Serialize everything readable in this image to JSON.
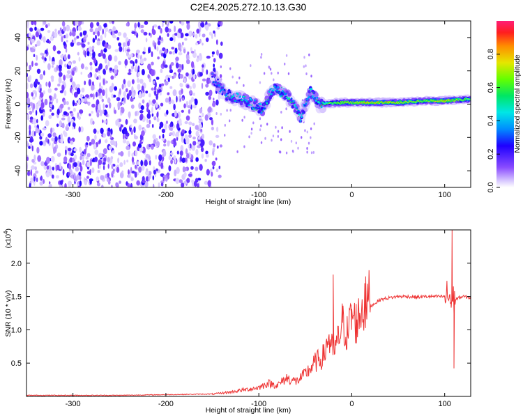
{
  "title": "C2E4.2025.272.10.13.G30",
  "colors": {
    "snr_line": "#ee3333",
    "spectrogram_dark": "#5a10e0",
    "spectrogram_light": "#d8c8ff",
    "band_core": "#ff2222"
  },
  "chart_data": [
    {
      "type": "heatmap",
      "title": "C2E4.2025.272.10.13.G30",
      "xlabel": "Height of straight line (km)",
      "ylabel": "Frequency (Hz)",
      "xlim": [
        -350,
        128
      ],
      "ylim": [
        -50,
        50
      ],
      "xticks": [
        "-300",
        "-200",
        "-100",
        "0",
        "100"
      ],
      "yticks": [
        "-40",
        "-20",
        "0",
        "20",
        "40"
      ],
      "colorbar": {
        "label": "Normalized spectral amplitude",
        "range": [
          0,
          1
        ],
        "ticks": [
          "0.0",
          "0.2",
          "0.4",
          "0.6",
          "0.8"
        ]
      },
      "noise_region_x": [
        -350,
        -150
      ],
      "band": [
        {
          "x": -150,
          "y": 16,
          "amp": 0.35
        },
        {
          "x": -135,
          "y": 6,
          "amp": 0.45
        },
        {
          "x": -115,
          "y": 2,
          "amp": 0.5
        },
        {
          "x": -95,
          "y": -3,
          "amp": 0.55
        },
        {
          "x": -85,
          "y": 9,
          "amp": 0.55
        },
        {
          "x": -70,
          "y": 6,
          "amp": 0.55
        },
        {
          "x": -55,
          "y": -8,
          "amp": 0.5
        },
        {
          "x": -45,
          "y": 8,
          "amp": 0.5
        },
        {
          "x": -35,
          "y": 0,
          "amp": 0.6
        },
        {
          "x": -10,
          "y": 1,
          "amp": 0.75
        },
        {
          "x": 20,
          "y": 1,
          "amp": 0.85
        },
        {
          "x": 50,
          "y": 1,
          "amp": 0.8
        },
        {
          "x": 80,
          "y": 2,
          "amp": 0.7
        },
        {
          "x": 100,
          "y": 2,
          "amp": 0.85
        },
        {
          "x": 128,
          "y": 3,
          "amp": 0.65
        }
      ]
    },
    {
      "type": "line",
      "xlabel": "Height of straight line (km)",
      "ylabel": "SNR (10 * v/v)",
      "multiplier_label": "(x10",
      "multiplier_exp": "4",
      "multiplier_close": ")",
      "xlim": [
        -350,
        128
      ],
      "ylim": [
        0,
        2.5
      ],
      "xticks": [
        "-300",
        "-200",
        "-100",
        "0",
        "100"
      ],
      "yticks": [
        "0.5",
        "1.0",
        "1.5",
        "2.0"
      ],
      "series": [
        {
          "x": [
            -350,
            -300,
            -250,
            -200,
            -150,
            -130,
            -110,
            -100,
            -90,
            -80,
            -70,
            -60,
            -50,
            -40,
            -30,
            -25,
            -20,
            -15,
            -10,
            -5,
            0,
            5,
            10,
            15,
            20,
            30,
            40,
            50,
            60,
            70,
            80,
            90,
            100,
            105,
            107,
            110,
            115,
            120,
            128
          ],
          "y": [
            0.01,
            0.01,
            0.01,
            0.02,
            0.03,
            0.06,
            0.1,
            0.12,
            0.18,
            0.15,
            0.25,
            0.2,
            0.3,
            0.45,
            0.55,
            0.8,
            0.6,
            0.75,
            1.0,
            0.85,
            1.1,
            1.0,
            1.15,
            1.25,
            1.35,
            1.45,
            1.48,
            1.5,
            1.5,
            1.49,
            1.5,
            1.5,
            1.5,
            1.52,
            1.4,
            1.45,
            1.48,
            1.5,
            1.48
          ],
          "spikes": [
            {
              "x": -20,
              "y": 1.83
            },
            {
              "x": 14,
              "y": 1.7
            },
            {
              "x": 108,
              "y": 2.5
            },
            {
              "x": 110,
              "y": 0.42
            }
          ]
        }
      ]
    }
  ]
}
